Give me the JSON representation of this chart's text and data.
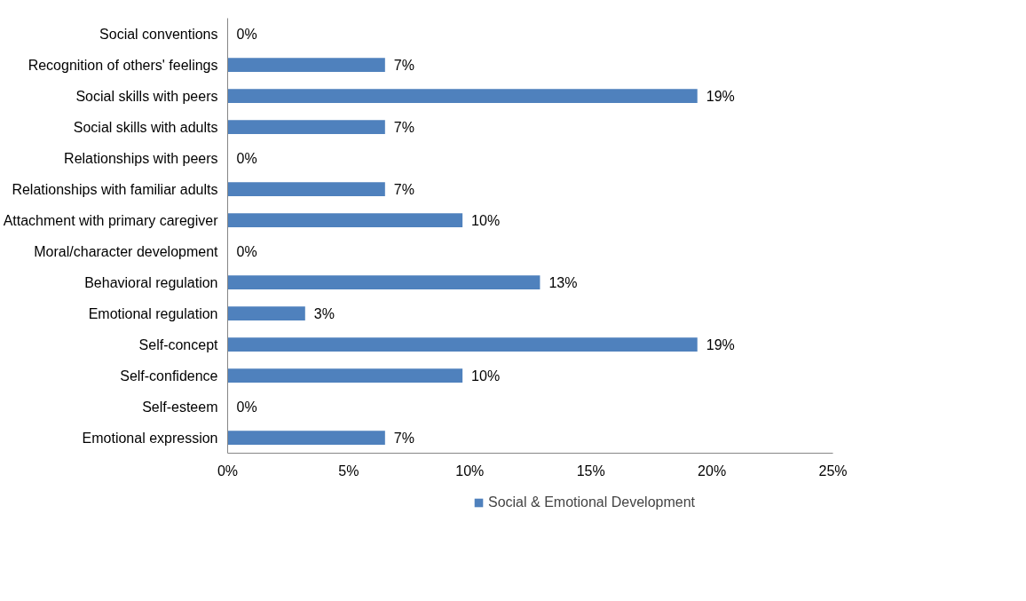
{
  "chart_data": {
    "type": "bar",
    "orientation": "horizontal",
    "categories": [
      "Social conventions",
      "Recognition of others' feelings",
      "Social skills with peers",
      "Social skills with adults",
      "Relationships with peers",
      "Relationships with familiar adults",
      "Attachment with primary caregiver",
      "Moral/character development",
      "Behavioral regulation",
      "Emotional regulation",
      "Self-concept",
      "Self-confidence",
      "Self-esteem",
      "Emotional expression"
    ],
    "series": [
      {
        "name": "Social & Emotional Development",
        "color": "#4f81bd",
        "values": [
          0,
          6.5,
          19.4,
          6.5,
          0,
          6.5,
          9.7,
          0,
          12.9,
          3.2,
          19.4,
          9.7,
          0,
          6.5
        ],
        "value_labels": [
          "0%",
          "7%",
          "19%",
          "7%",
          "0%",
          "7%",
          "10%",
          "0%",
          "13%",
          "3%",
          "19%",
          "10%",
          "0%",
          "7%"
        ]
      }
    ],
    "xlim": [
      0,
      25
    ],
    "xticks": [
      {
        "value": 0,
        "label": "0%"
      },
      {
        "value": 5,
        "label": "5%"
      },
      {
        "value": 10,
        "label": "10%"
      },
      {
        "value": 15,
        "label": "15%"
      },
      {
        "value": 20,
        "label": "20%"
      },
      {
        "value": 25,
        "label": "25%"
      }
    ],
    "grid": false,
    "legend": "bottom"
  }
}
